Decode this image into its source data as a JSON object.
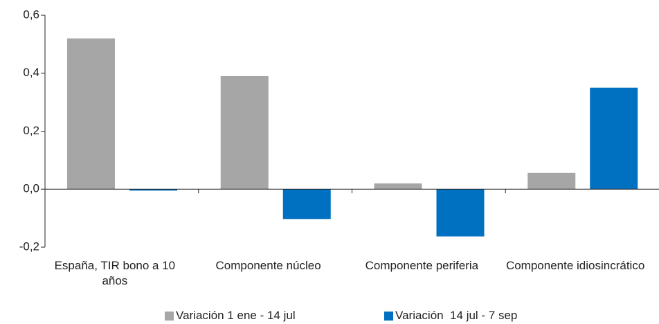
{
  "chart_data": {
    "type": "bar",
    "categories": [
      "España, TIR bono a 10 años",
      "Componente núcleo",
      "Componente periferia",
      "Componente idiosincrático"
    ],
    "series": [
      {
        "name": "Variación 1 ene - 14 jul",
        "color": "#a6a6a6",
        "values": [
          0.52,
          0.39,
          0.02,
          0.056
        ]
      },
      {
        "name": "Variación  14 jul - 7 sep",
        "color": "#0070c0",
        "values": [
          -0.005,
          -0.103,
          -0.163,
          0.35
        ]
      }
    ],
    "ylim": [
      -0.2,
      0.6
    ],
    "yticks": [
      {
        "value": -0.2,
        "label": "-0,2"
      },
      {
        "value": 0.0,
        "label": "0,0"
      },
      {
        "value": 0.2,
        "label": "0,2"
      },
      {
        "value": 0.4,
        "label": "0,4"
      },
      {
        "value": 0.6,
        "label": "0,6"
      }
    ],
    "legend": "bottom"
  }
}
